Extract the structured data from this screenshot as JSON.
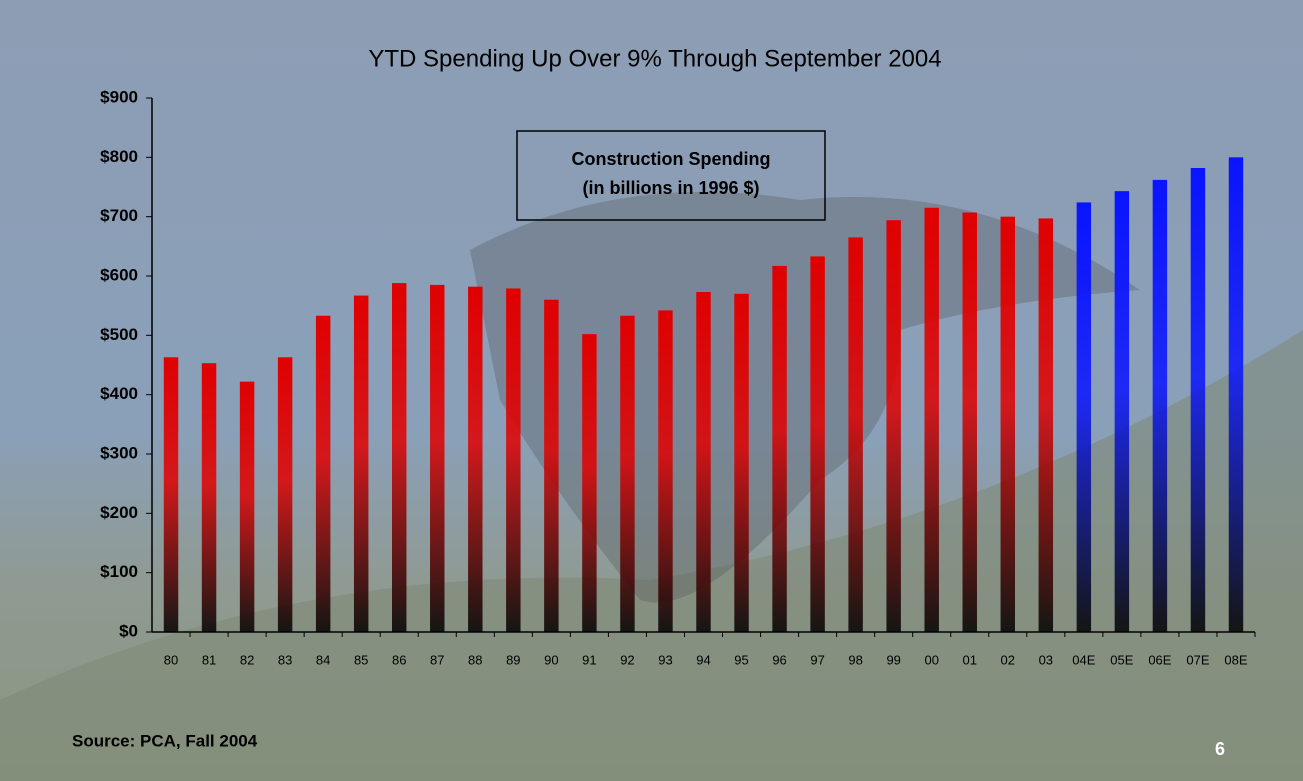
{
  "chart_data": {
    "type": "bar",
    "title": "YTD Spending Up Over 9% Through September 2004",
    "annotation": [
      "Construction Spending",
      "(in billions in 1996 $)"
    ],
    "source": "Source: PCA, Fall 2004",
    "page_number": "6",
    "categories": [
      "80",
      "81",
      "82",
      "83",
      "84",
      "85",
      "86",
      "87",
      "88",
      "89",
      "90",
      "91",
      "92",
      "93",
      "94",
      "95",
      "96",
      "97",
      "98",
      "99",
      "00",
      "01",
      "02",
      "03",
      "04E",
      "05E",
      "06E",
      "07E",
      "08E"
    ],
    "series": [
      {
        "color": "#e00000",
        "values": [
          463,
          453,
          422,
          463,
          533,
          567,
          588,
          585,
          582,
          579,
          560,
          502,
          533,
          542,
          573,
          570,
          617,
          633,
          665,
          694,
          715,
          707,
          700,
          697,
          null,
          null,
          null,
          null,
          null
        ]
      },
      {
        "color": "#0a14ff",
        "values": [
          null,
          null,
          null,
          null,
          null,
          null,
          null,
          null,
          null,
          null,
          null,
          null,
          null,
          null,
          null,
          null,
          null,
          null,
          null,
          null,
          null,
          null,
          null,
          null,
          724,
          743,
          762,
          782,
          800
        ]
      }
    ],
    "ylim": [
      0,
      900
    ],
    "yticks": [
      {
        "value": 0,
        "label": "$0"
      },
      {
        "value": 100,
        "label": "$100"
      },
      {
        "value": 200,
        "label": "$200"
      },
      {
        "value": 300,
        "label": "$300"
      },
      {
        "value": 400,
        "label": "$400"
      },
      {
        "value": 500,
        "label": "$500"
      },
      {
        "value": 600,
        "label": "$600"
      },
      {
        "value": 700,
        "label": "$700"
      },
      {
        "value": 800,
        "label": "$800"
      },
      {
        "value": 900,
        "label": "$900"
      }
    ],
    "grid": false
  }
}
